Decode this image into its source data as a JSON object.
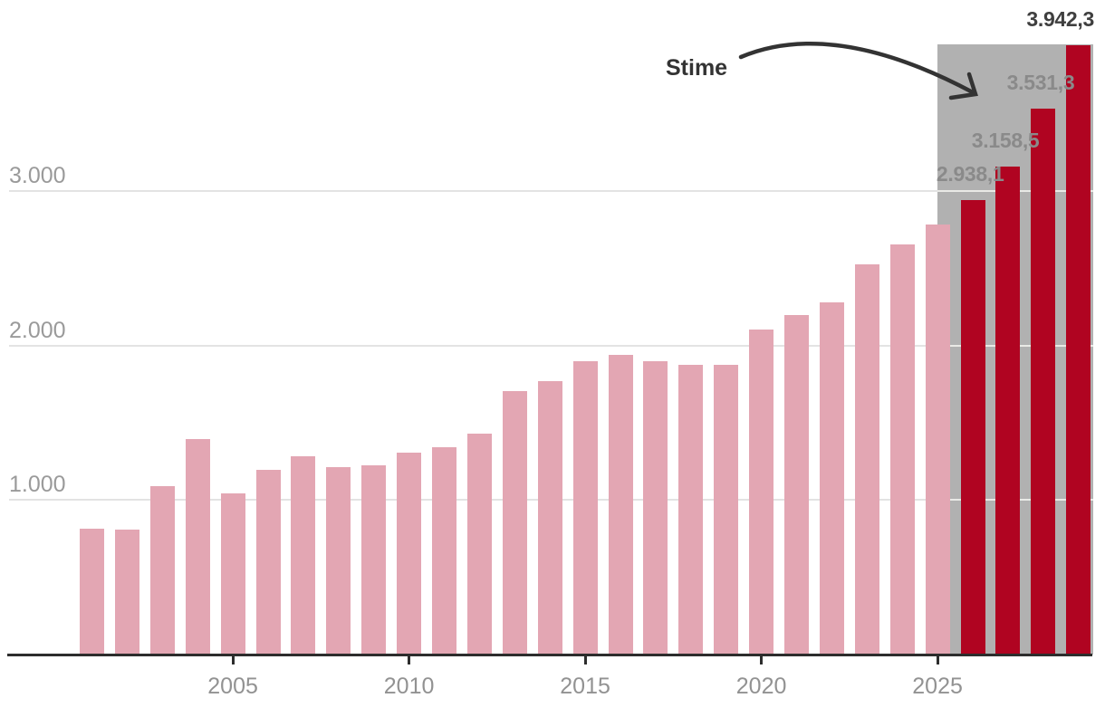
{
  "annotation": {
    "stime_label": "Stime"
  },
  "chart_data": {
    "type": "bar",
    "title": "",
    "xlabel": "",
    "ylabel": "",
    "x": [
      2001,
      2002,
      2003,
      2004,
      2005,
      2006,
      2007,
      2008,
      2009,
      2010,
      2011,
      2012,
      2013,
      2014,
      2015,
      2016,
      2017,
      2018,
      2019,
      2020,
      2021,
      2022,
      2023,
      2024,
      2025,
      2026,
      2027,
      2028,
      2029
    ],
    "values": [
      815,
      810,
      1090,
      1395,
      1040,
      1195,
      1280,
      1215,
      1225,
      1305,
      1340,
      1430,
      1705,
      1770,
      1895,
      1940,
      1900,
      1875,
      1875,
      2100,
      2195,
      2280,
      2525,
      2655,
      2780,
      2938.1,
      3158.5,
      3531.3,
      3942.3
    ],
    "estimate_years": [
      2026,
      2027,
      2028,
      2029
    ],
    "estimate_region_label": "Stime",
    "value_labels": [
      {
        "year": 2026,
        "text": "2.938,1",
        "emphasis": false
      },
      {
        "year": 2027,
        "text": "3.158,5",
        "emphasis": false
      },
      {
        "year": 2028,
        "text": "3.531,3",
        "emphasis": false
      },
      {
        "year": 2029,
        "text": "3.942,3",
        "emphasis": true
      }
    ],
    "yticks": [
      {
        "value": 1000,
        "label": "1.000"
      },
      {
        "value": 2000,
        "label": "2.000"
      },
      {
        "value": 3000,
        "label": "3.000"
      }
    ],
    "xticks": [
      {
        "value": 2005,
        "label": "2005"
      },
      {
        "value": 2010,
        "label": "2010"
      },
      {
        "value": 2015,
        "label": "2015"
      },
      {
        "value": 2020,
        "label": "2020"
      },
      {
        "value": 2025,
        "label": "2025"
      }
    ],
    "ylim": [
      0,
      4000
    ],
    "grid": "horizontal-only",
    "legend": "none",
    "colors": {
      "bar_historical": "#e3a6b3",
      "bar_estimate": "#b00421",
      "estimate_band": "#b1b1b1",
      "grid_line": "#e3e3e3",
      "grid_line_on_band": "#e9e9e6",
      "axis_line": "#2d2d2d",
      "axis_tick_label": "#929292",
      "value_label": "#8a8a8a",
      "value_label_emphasis": "#3f3f3f",
      "annotation_text": "#333333"
    }
  }
}
